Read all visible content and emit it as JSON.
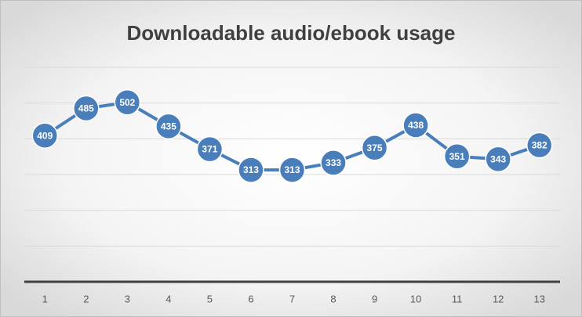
{
  "chart_data": {
    "type": "line",
    "title": "Downloadable audio/ebook usage",
    "categories": [
      "1",
      "2",
      "3",
      "4",
      "5",
      "6",
      "7",
      "8",
      "9",
      "10",
      "11",
      "12",
      "13"
    ],
    "values": [
      409,
      485,
      502,
      435,
      371,
      313,
      313,
      333,
      375,
      438,
      351,
      343,
      382
    ],
    "color": "#4a7ebb",
    "ylim": [
      0,
      600
    ],
    "yticks": [
      0,
      100,
      200,
      300,
      400,
      500,
      600
    ],
    "grid": true
  }
}
